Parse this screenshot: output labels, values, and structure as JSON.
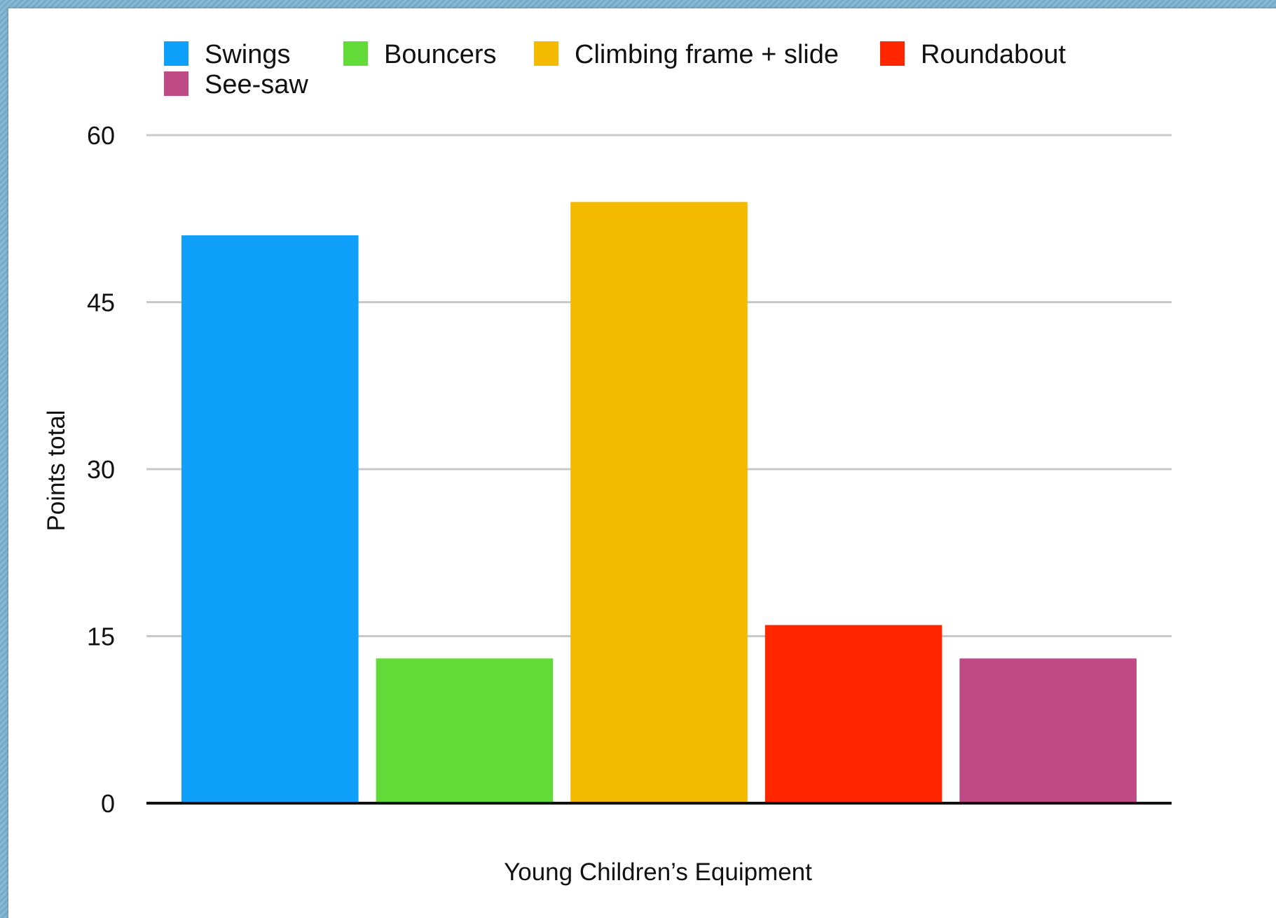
{
  "chart_data": {
    "type": "bar",
    "title": "",
    "xlabel": "Young Children’s Equipment",
    "ylabel": "Points total",
    "ylim": [
      0,
      60
    ],
    "yticks": [
      0,
      15,
      30,
      45,
      60
    ],
    "grid": true,
    "legend_position": "top",
    "categories": [
      ""
    ],
    "series": [
      {
        "name": "Swings",
        "values": [
          51
        ],
        "color": "#0ea0fb"
      },
      {
        "name": "Bouncers",
        "values": [
          13
        ],
        "color": "#62da38"
      },
      {
        "name": "Climbing frame + slide",
        "values": [
          54
        ],
        "color": "#f4ba00"
      },
      {
        "name": "Roundabout",
        "values": [
          16
        ],
        "color": "#ff2600"
      },
      {
        "name": "See-saw",
        "values": [
          13
        ],
        "color": "#c04a86"
      }
    ]
  }
}
